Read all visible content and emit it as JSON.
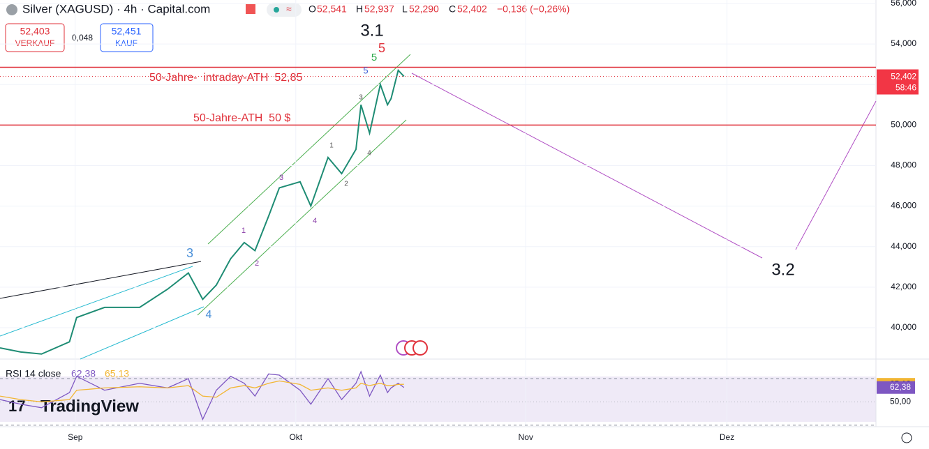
{
  "header": {
    "symbol": "Silver (XAGUSD) · 4h · Capital.com",
    "o_label": "O",
    "o": "52,541",
    "h_label": "H",
    "h": "52,937",
    "l_label": "L",
    "l": "52,290",
    "c_label": "C",
    "c": "52,402",
    "change": "−0,136 (−0,26%)",
    "sell_price": "52,403",
    "sell": "VERKAUF",
    "spread": "0,048",
    "buy_price": "52,451",
    "buy": "KAUF",
    "last_price": "52,402",
    "countdown": "58:46",
    "logo": "TradingView"
  },
  "chart_data": {
    "type": "line",
    "color": "#1e8c74",
    "x": [
      -10.5,
      -7.6,
      -4.7,
      -0.8,
      0.2,
      4.1,
      9,
      12.9,
      15.8,
      17.8,
      19.7,
      21.7,
      23.6,
      25.1,
      27,
      28.5,
      31.4,
      32.9,
      35.3,
      37.2,
      39.2,
      39.9,
      41.1,
      42.6,
      43.6,
      44.1,
      45.1,
      45.9
    ],
    "values": [
      39.0,
      38.8,
      38.7,
      39.3,
      40.5,
      41.0,
      41.0,
      41.9,
      42.7,
      41.4,
      42.1,
      43.4,
      44.2,
      43.8,
      45.5,
      46.9,
      47.2,
      46.0,
      48.4,
      47.6,
      48.8,
      51.0,
      49.6,
      52.0,
      51.0,
      51.3,
      52.7,
      52.402
    ],
    "xlim": [
      -10.5,
      111.8
    ],
    "ylim": [
      38.45,
      56.17
    ],
    "xticks": [
      {
        "value": 0,
        "label": "Sep"
      },
      {
        "value": 30.8,
        "label": "Okt"
      },
      {
        "value": 62.9,
        "label": "Nov"
      },
      {
        "value": 91,
        "label": "Dez"
      }
    ],
    "yticks": [
      {
        "value": 40,
        "label": "40,000"
      },
      {
        "value": 42,
        "label": "42,000"
      },
      {
        "value": 44,
        "label": "44,000"
      },
      {
        "value": 46,
        "label": "46,000"
      },
      {
        "value": 48,
        "label": "48,000"
      },
      {
        "value": 50,
        "label": "50,000"
      },
      {
        "value": 52,
        "label": "52,000"
      },
      {
        "value": 54,
        "label": "54,000"
      },
      {
        "value": 56,
        "label": "56,000"
      }
    ],
    "levels": [
      {
        "value": 52.85,
        "color": "#e0303a"
      },
      {
        "value": 50,
        "color": "#e0303a"
      }
    ],
    "annotations": [
      {
        "text": "3.1",
        "color": "#131722"
      },
      {
        "text": "5",
        "color": "#e0303a"
      },
      {
        "text": "5",
        "color": "#2ca84a"
      },
      {
        "text": "5",
        "color": "#3b5bd6"
      },
      {
        "text": "50-Jahre-  intraday-ATH  52,85",
        "color": "#e0303a"
      },
      {
        "text": "50-Jahre-ATH  50 $",
        "color": "#e0303a"
      },
      {
        "text": "3",
        "color": "#4a90d9"
      },
      {
        "text": "4",
        "color": "#4a90d9"
      },
      {
        "text": "1",
        "color": "#8a3ea8"
      },
      {
        "text": "2",
        "color": "#8a3ea8"
      },
      {
        "text": "3",
        "color": "#8a3ea8"
      },
      {
        "text": "4",
        "color": "#8a3ea8"
      },
      {
        "text": "1",
        "color": "#555"
      },
      {
        "text": "2",
        "color": "#555"
      },
      {
        "text": "3",
        "color": "#555"
      },
      {
        "text": "4",
        "color": "#555"
      },
      {
        "text": "3.2",
        "color": "#131722"
      }
    ],
    "rsi": {
      "title": "RSI 14 close",
      "value_label": "62,38",
      "ma_label": "65,13",
      "ylim": [
        28.7,
        86.8
      ],
      "yticks": [
        {
          "value": 50,
          "label": "50,00"
        }
      ],
      "bands": [
        70,
        30
      ],
      "series": [
        {
          "name": "RSI",
          "color": "#7e57c2",
          "values": [
            52,
            48,
            45,
            58,
            72,
            60,
            66,
            62,
            70,
            35,
            60,
            72,
            66,
            55,
            74,
            73,
            60,
            48,
            70,
            52,
            66,
            76,
            55,
            73,
            58,
            62,
            66,
            62.38
          ]
        },
        {
          "name": "MA",
          "color": "#f2b632",
          "values": [
            55,
            52,
            50,
            52,
            60,
            62,
            63,
            62,
            64,
            55,
            54,
            62,
            64,
            62,
            66,
            68,
            65,
            60,
            62,
            60,
            62,
            66,
            64,
            66,
            64,
            64,
            65,
            65.13
          ]
        }
      ]
    }
  }
}
